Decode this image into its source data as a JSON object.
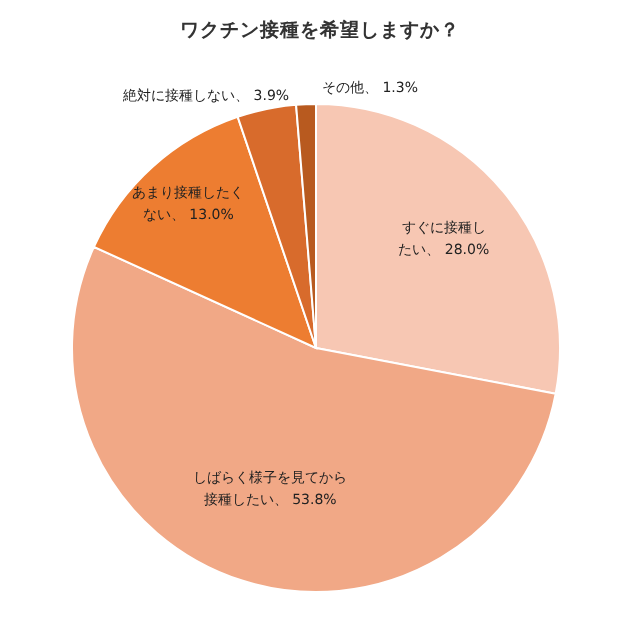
{
  "chart_data": {
    "type": "pie",
    "title": "ワクチン接種を希望しますか？",
    "categories": [
      "すぐに接種したい",
      "しばらく様子を見てから接種したい",
      "あまり接種したくない",
      "絶対に接種しない",
      "その他"
    ],
    "values": [
      28.0,
      53.8,
      13.0,
      3.9,
      1.3
    ],
    "value_labels": [
      "28.0%",
      "53.8%",
      "13.0%",
      "3.9%",
      "1.3%"
    ],
    "colors": [
      "#f7c7b3",
      "#f1a886",
      "#ed7d31",
      "#d86b2c",
      "#b85a1f"
    ]
  }
}
